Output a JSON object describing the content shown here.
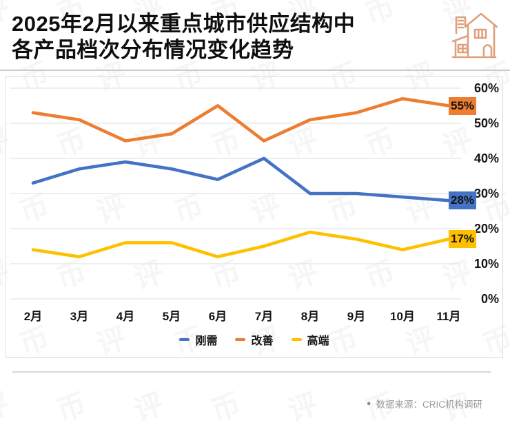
{
  "header": {
    "title_line1": "2025年2月以来重点城市供应结构中",
    "title_line2": "各产品档次分布情况变化趋势",
    "house_icon_color": "#DFA07C"
  },
  "chart_data": {
    "type": "line",
    "title": "2025年2月以来重点城市供应结构中各产品档次分布情况变化趋势",
    "categories": [
      "2月",
      "3月",
      "4月",
      "5月",
      "6月",
      "7月",
      "8月",
      "9月",
      "10月",
      "11月"
    ],
    "series": [
      {
        "name": "刚需",
        "color": "#4472C4",
        "values": [
          33,
          37,
          39,
          37,
          34,
          40,
          30,
          30,
          29,
          28
        ],
        "end_label": "28%"
      },
      {
        "name": "改善",
        "color": "#ED7D31",
        "values": [
          53,
          51,
          45,
          47,
          55,
          45,
          51,
          53,
          57,
          55
        ],
        "end_label": "55%"
      },
      {
        "name": "高端",
        "color": "#FFC000",
        "values": [
          14,
          12,
          16,
          16,
          12,
          15,
          19,
          17,
          14,
          17
        ],
        "end_label": "17%"
      }
    ],
    "ylim": [
      0,
      60
    ],
    "ytick_step": 10,
    "ytick_suffix": "%",
    "yaxis_side": "right",
    "grid": true,
    "grid_color": "#e8e8e8",
    "legend_position": "bottom"
  },
  "footer": {
    "bullet": "●",
    "source": "数据来源：CRIC机构调研"
  },
  "watermark": {
    "glyphs": [
      "评",
      "币"
    ]
  }
}
